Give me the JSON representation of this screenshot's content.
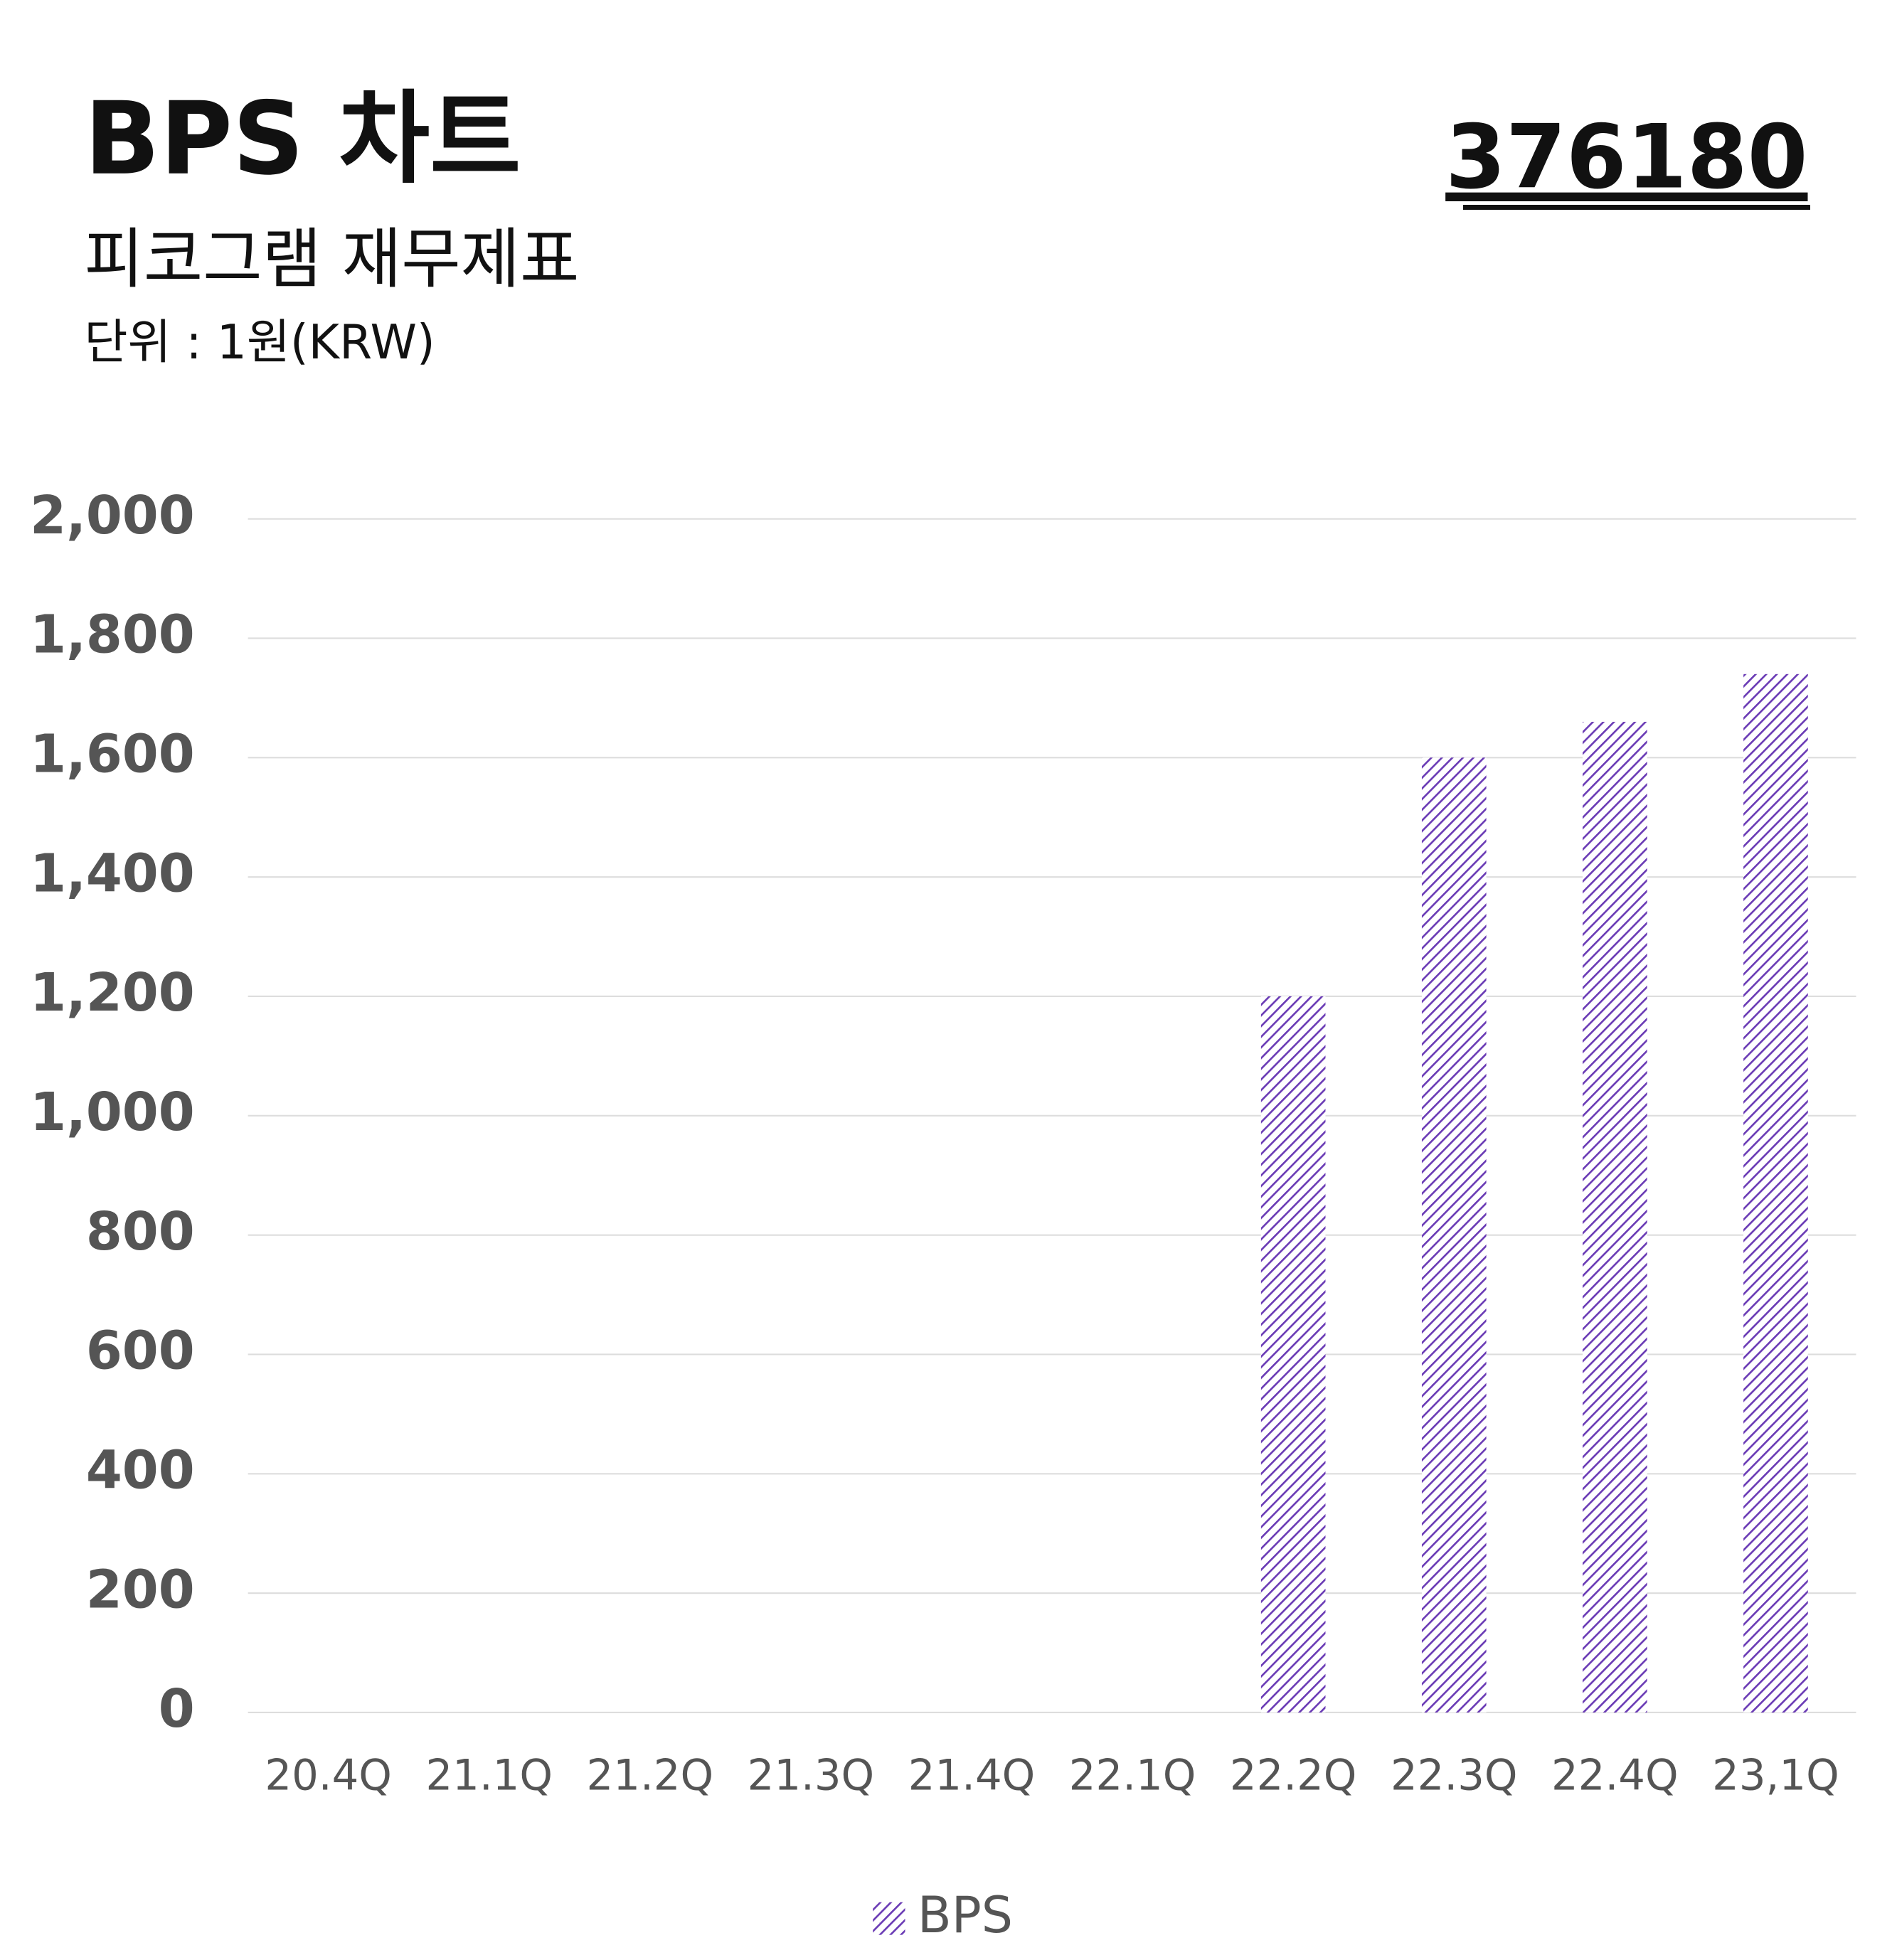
{
  "chart_data": {
    "type": "bar",
    "title": "BPS 차트",
    "subtitle": "피코그램 재무제표",
    "unit": "단위 : 1원(KRW)",
    "code": "376180",
    "categories": [
      "20.4Q",
      "21.1Q",
      "21.2Q",
      "21.3Q",
      "21.4Q",
      "22.1Q",
      "22.2Q",
      "22.3Q",
      "22.4Q",
      "23,1Q"
    ],
    "series": [
      {
        "name": "BPS",
        "color": "#6a3bb5",
        "values": [
          null,
          null,
          null,
          null,
          null,
          null,
          1200,
          1600,
          1660,
          1740
        ]
      }
    ],
    "ylim": [
      0,
      2000
    ],
    "yticks": [
      0,
      200,
      400,
      600,
      800,
      {
        "value": 1000,
        "label": "1,000"
      },
      {
        "value": 1200,
        "label": "1,200"
      },
      {
        "value": 1400,
        "label": "1,400"
      },
      {
        "value": 1600,
        "label": "1,600"
      },
      {
        "value": 1800,
        "label": "1,800"
      },
      {
        "value": 2000,
        "label": "2,000"
      }
    ],
    "grid": true
  }
}
